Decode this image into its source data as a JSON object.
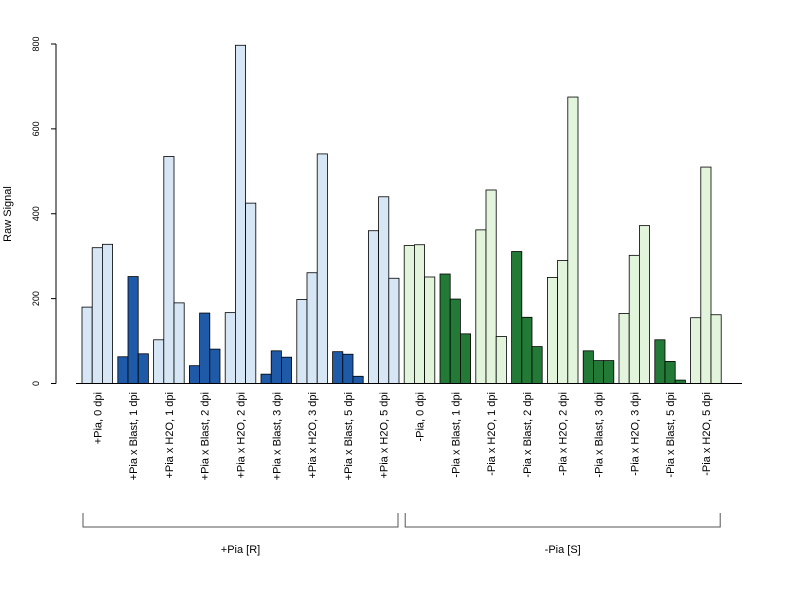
{
  "chart_data": {
    "type": "bar",
    "ylabel": "Raw Signal",
    "yticks": [
      0,
      200,
      400,
      600,
      800
    ],
    "ylim": [
      0,
      800
    ],
    "colors": {
      "light_blue": "#d6e6f5",
      "dark_blue": "#1f5aa8",
      "light_green": "#e2f5dc",
      "dark_green": "#237a36"
    },
    "categories": [
      {
        "label": "+Pia, 0 dpi",
        "color": "light_blue",
        "values": [
          180,
          320,
          328
        ]
      },
      {
        "label": "+Pia x Blast, 1 dpi",
        "color": "dark_blue",
        "values": [
          63,
          252,
          70
        ]
      },
      {
        "label": "+Pia x H2O, 1 dpi",
        "color": "light_blue",
        "values": [
          103,
          535,
          190
        ]
      },
      {
        "label": "+Pia x Blast, 2 dpi",
        "color": "dark_blue",
        "values": [
          42,
          166,
          81
        ]
      },
      {
        "label": "+Pia x H2O, 2 dpi",
        "color": "light_blue",
        "values": [
          167,
          797,
          425
        ]
      },
      {
        "label": "+Pia x Blast, 3 dpi",
        "color": "dark_blue",
        "values": [
          22,
          77,
          62
        ]
      },
      {
        "label": "+Pia x H2O, 3 dpi",
        "color": "light_blue",
        "values": [
          198,
          261,
          541
        ]
      },
      {
        "label": "+Pia x Blast, 5 dpi",
        "color": "dark_blue",
        "values": [
          75,
          69,
          17
        ]
      },
      {
        "label": "+Pia x H2O, 5 dpi",
        "color": "light_blue",
        "values": [
          360,
          440,
          248
        ]
      },
      {
        "label": "-Pia, 0 dpi",
        "color": "light_green",
        "values": [
          325,
          327,
          251
        ]
      },
      {
        "label": "-Pia x Blast, 1 dpi",
        "color": "dark_green",
        "values": [
          258,
          199,
          117
        ]
      },
      {
        "label": "-Pia x H2O, 1 dpi",
        "color": "light_green",
        "values": [
          362,
          456,
          111
        ]
      },
      {
        "label": "-Pia x Blast, 2 dpi",
        "color": "dark_green",
        "values": [
          311,
          156,
          87
        ]
      },
      {
        "label": "-Pia x H2O, 2 dpi",
        "color": "light_green",
        "values": [
          250,
          290,
          675
        ]
      },
      {
        "label": "-Pia x Blast, 3 dpi",
        "color": "dark_green",
        "values": [
          77,
          54,
          54
        ]
      },
      {
        "label": "-Pia x H2O, 3 dpi",
        "color": "light_green",
        "values": [
          165,
          302,
          372
        ]
      },
      {
        "label": "-Pia x Blast, 5 dpi",
        "color": "dark_green",
        "values": [
          103,
          52,
          8
        ]
      },
      {
        "label": "-Pia x H2O, 5 dpi",
        "color": "light_green",
        "values": [
          155,
          510,
          162
        ]
      }
    ],
    "groups": [
      {
        "label": "+Pia [R]",
        "from": 0,
        "to": 8
      },
      {
        "label": "-Pia [S]",
        "from": 9,
        "to": 17
      }
    ]
  }
}
